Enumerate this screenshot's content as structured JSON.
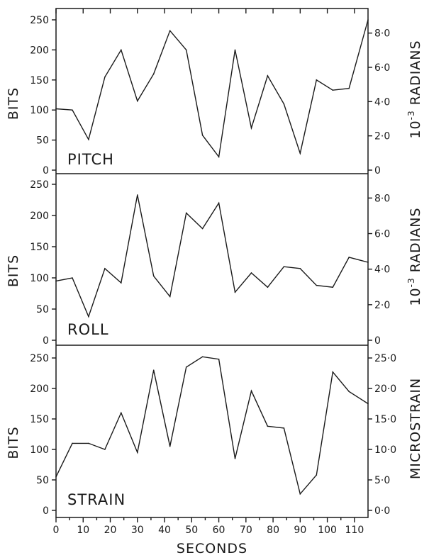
{
  "chart_data": {
    "type": "line",
    "xlabel": "SECONDS",
    "xlim": [
      0,
      115
    ],
    "xticks": [
      0,
      10,
      20,
      30,
      40,
      50,
      60,
      70,
      80,
      90,
      100,
      110
    ],
    "x": [
      0,
      6,
      12,
      18,
      24,
      30,
      36,
      42,
      48,
      54,
      60,
      66,
      72,
      78,
      84,
      90,
      96,
      102,
      108,
      115
    ],
    "panels": [
      {
        "label": "PITCH",
        "ylabel": "BITS",
        "ylim": [
          0,
          255
        ],
        "yticks": [
          0,
          50,
          100,
          150,
          200,
          250
        ],
        "values": [
          102,
          100,
          51,
          155,
          200,
          115,
          160,
          232,
          200,
          58,
          22,
          200,
          70,
          157,
          110,
          28,
          150,
          133,
          136,
          250
        ],
        "secondary_axis": {
          "label_prefix": "10",
          "label_exponent": "-3",
          "label_suffix": " RADIANS",
          "tick_labels": [
            "0",
            "2·0",
            "4·0",
            "6·0",
            "8·0"
          ],
          "tick_values_bits": [
            0,
            57,
            114,
            171,
            228
          ]
        }
      },
      {
        "label": "ROLL",
        "ylabel": "BITS",
        "ylim": [
          0,
          255
        ],
        "yticks": [
          0,
          50,
          100,
          150,
          200,
          250
        ],
        "values": [
          95,
          100,
          38,
          115,
          92,
          233,
          103,
          70,
          204,
          179,
          220,
          77,
          108,
          85,
          118,
          115,
          88,
          85,
          133,
          125
        ],
        "secondary_axis": {
          "label_prefix": "10",
          "label_exponent": "-3",
          "label_suffix": " RADIANS",
          "tick_labels": [
            "0",
            "2·0",
            "4·0",
            "6·0",
            "8·0"
          ],
          "tick_values_bits": [
            0,
            57,
            114,
            171,
            228
          ]
        }
      },
      {
        "label": "STRAIN",
        "ylabel": "BITS",
        "ylim": [
          0,
          255
        ],
        "yticks": [
          0,
          50,
          100,
          150,
          200,
          250
        ],
        "values": [
          55,
          110,
          110,
          100,
          160,
          95,
          230,
          105,
          235,
          252,
          248,
          85,
          196,
          138,
          135,
          27,
          58,
          227,
          195,
          175
        ],
        "secondary_axis": {
          "label_prefix": "",
          "label_exponent": "",
          "label_suffix": "MICROSTRAIN",
          "tick_labels": [
            "0·0",
            "5·0",
            "10·0",
            "15·0",
            "20·0",
            "25·0"
          ],
          "tick_values_bits": [
            0,
            50,
            100,
            150,
            200,
            250
          ]
        }
      }
    ]
  }
}
